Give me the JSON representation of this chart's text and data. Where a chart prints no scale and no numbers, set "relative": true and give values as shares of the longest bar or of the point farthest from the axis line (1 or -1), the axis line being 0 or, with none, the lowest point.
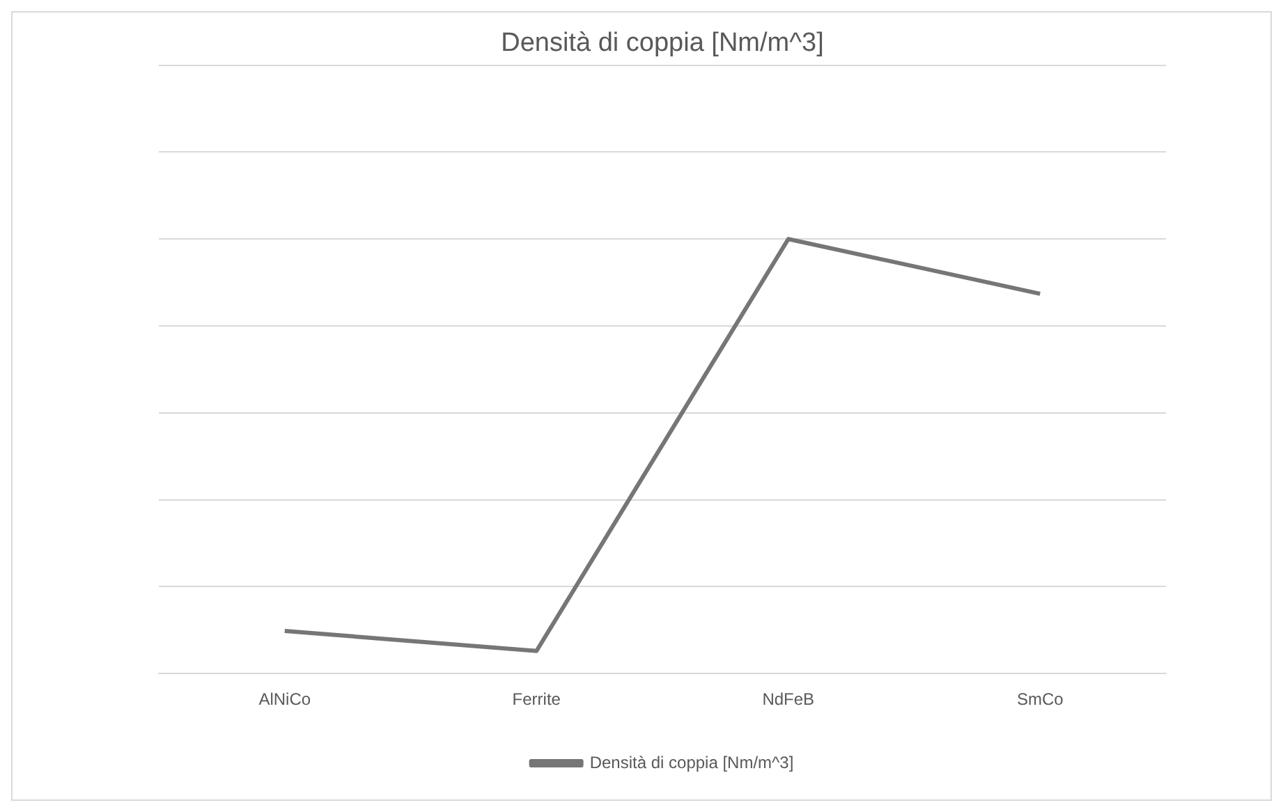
{
  "chart_data": {
    "type": "line",
    "title": "Densità di coppia [Nm/m^3]",
    "categories": [
      "AlNiCo",
      "Ferrite",
      "NdFeB",
      "SmCo"
    ],
    "series": [
      {
        "name": "Densità di coppia [Nm/m^3]",
        "color": "#767676",
        "values": [
          0.098,
          0.052,
          1,
          0.874
        ]
      }
    ],
    "relative": true,
    "grid": "y",
    "legend": "bottom",
    "marker": "none",
    "line_style": "solid"
  }
}
